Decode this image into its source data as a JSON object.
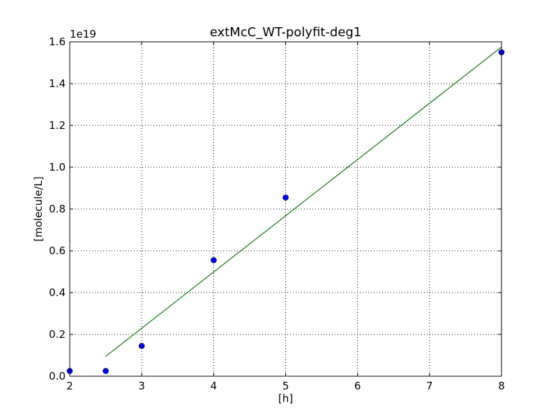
{
  "chart_data": {
    "type": "scatter",
    "title": "extMcC_WT-polyfit-deg1",
    "xlabel": "[h]",
    "ylabel": "[molecule/L]",
    "y_offset_label": "1e19",
    "y_scale": 1e+19,
    "xlim": [
      2,
      8
    ],
    "ylim": [
      0,
      1.6
    ],
    "x_ticks": [
      2,
      3,
      4,
      5,
      6,
      7,
      8
    ],
    "x_tick_labels": [
      "2",
      "3",
      "4",
      "5",
      "6",
      "7",
      "8"
    ],
    "y_ticks": [
      0,
      0.2,
      0.4,
      0.6,
      0.8,
      1.0,
      1.2,
      1.4,
      1.6
    ],
    "y_tick_labels": [
      "0.0",
      "0.2",
      "0.4",
      "0.6",
      "0.8",
      "1.0",
      "1.2",
      "1.4",
      "1.6"
    ],
    "grid": true,
    "series": [
      {
        "kind": "points",
        "color": "#0000ff",
        "x": [
          2,
          2.5,
          3,
          4,
          5,
          8
        ],
        "y": [
          0.025,
          0.025,
          0.145,
          0.555,
          0.855,
          1.55
        ]
      },
      {
        "kind": "line",
        "color": "#008000",
        "x": [
          2.5,
          8
        ],
        "y": [
          0.095,
          1.575
        ]
      }
    ]
  }
}
